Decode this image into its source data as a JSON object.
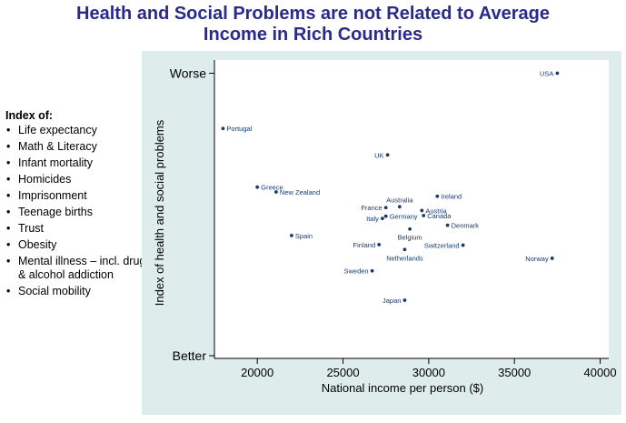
{
  "title_lines": [
    "Health and Social Problems are not Related to Average",
    "Income in Rich Countries"
  ],
  "legend": {
    "heading": "Index of:",
    "items": [
      "Life expectancy",
      "Math & Literacy",
      "Infant mortality",
      "Homicides",
      "Imprisonment",
      "Teenage births",
      "Trust",
      "Obesity",
      "Mental illness – incl. drug & alcohol addiction",
      "Social mobility"
    ]
  },
  "colors": {
    "title": "#2a2a8a",
    "panel": "#dfecec",
    "marker": "#1a3a6e",
    "label": "#1a3a6e"
  },
  "chart_data": {
    "type": "scatter",
    "title": "",
    "xlabel": "National income per person ($)",
    "ylabel": "Index of health and social problems",
    "xlim": [
      17500,
      40500
    ],
    "xticks": [
      20000,
      25000,
      30000,
      35000,
      40000
    ],
    "xtick_labels": [
      "20000",
      "25000",
      "30000",
      "35000",
      "40000"
    ],
    "ylim": [
      0,
      10
    ],
    "yticks": [
      {
        "value": 9.92,
        "label": "Worse"
      },
      {
        "value": 0.0,
        "label": "Better"
      }
    ],
    "grid": false,
    "points": [
      {
        "label": "USA",
        "x": 37500,
        "y": 9.92,
        "label_side": "left"
      },
      {
        "label": "Portugal",
        "x": 18000,
        "y": 7.98,
        "label_side": "right"
      },
      {
        "label": "UK",
        "x": 27600,
        "y": 7.05,
        "label_side": "left"
      },
      {
        "label": "Greece",
        "x": 20000,
        "y": 5.92,
        "label_side": "right"
      },
      {
        "label": "New Zealand",
        "x": 21100,
        "y": 5.75,
        "label_side": "right"
      },
      {
        "label": "Ireland",
        "x": 30500,
        "y": 5.6,
        "label_side": "right"
      },
      {
        "label": "France",
        "x": 27500,
        "y": 5.2,
        "label_side": "left"
      },
      {
        "label": "Australia",
        "x": 28300,
        "y": 5.23,
        "label_side": "above"
      },
      {
        "label": "Austria",
        "x": 29600,
        "y": 5.1,
        "label_side": "right"
      },
      {
        "label": "Germany",
        "x": 27500,
        "y": 4.9,
        "label_side": "right"
      },
      {
        "label": "Italy",
        "x": 27300,
        "y": 4.82,
        "label_side": "left"
      },
      {
        "label": "Canada",
        "x": 29700,
        "y": 4.92,
        "label_side": "right"
      },
      {
        "label": "Denmark",
        "x": 31100,
        "y": 4.58,
        "label_side": "right"
      },
      {
        "label": "Belgium",
        "x": 28900,
        "y": 4.45,
        "label_side": "below"
      },
      {
        "label": "Spain",
        "x": 22000,
        "y": 4.22,
        "label_side": "right"
      },
      {
        "label": "Finland",
        "x": 27100,
        "y": 3.9,
        "label_side": "left"
      },
      {
        "label": "Switzerland",
        "x": 32000,
        "y": 3.88,
        "label_side": "left"
      },
      {
        "label": "Netherlands",
        "x": 28600,
        "y": 3.73,
        "label_side": "below"
      },
      {
        "label": "Norway",
        "x": 37200,
        "y": 3.42,
        "label_side": "left"
      },
      {
        "label": "Sweden",
        "x": 26700,
        "y": 2.98,
        "label_side": "left"
      },
      {
        "label": "Japan",
        "x": 28600,
        "y": 1.95,
        "label_side": "left"
      }
    ]
  }
}
